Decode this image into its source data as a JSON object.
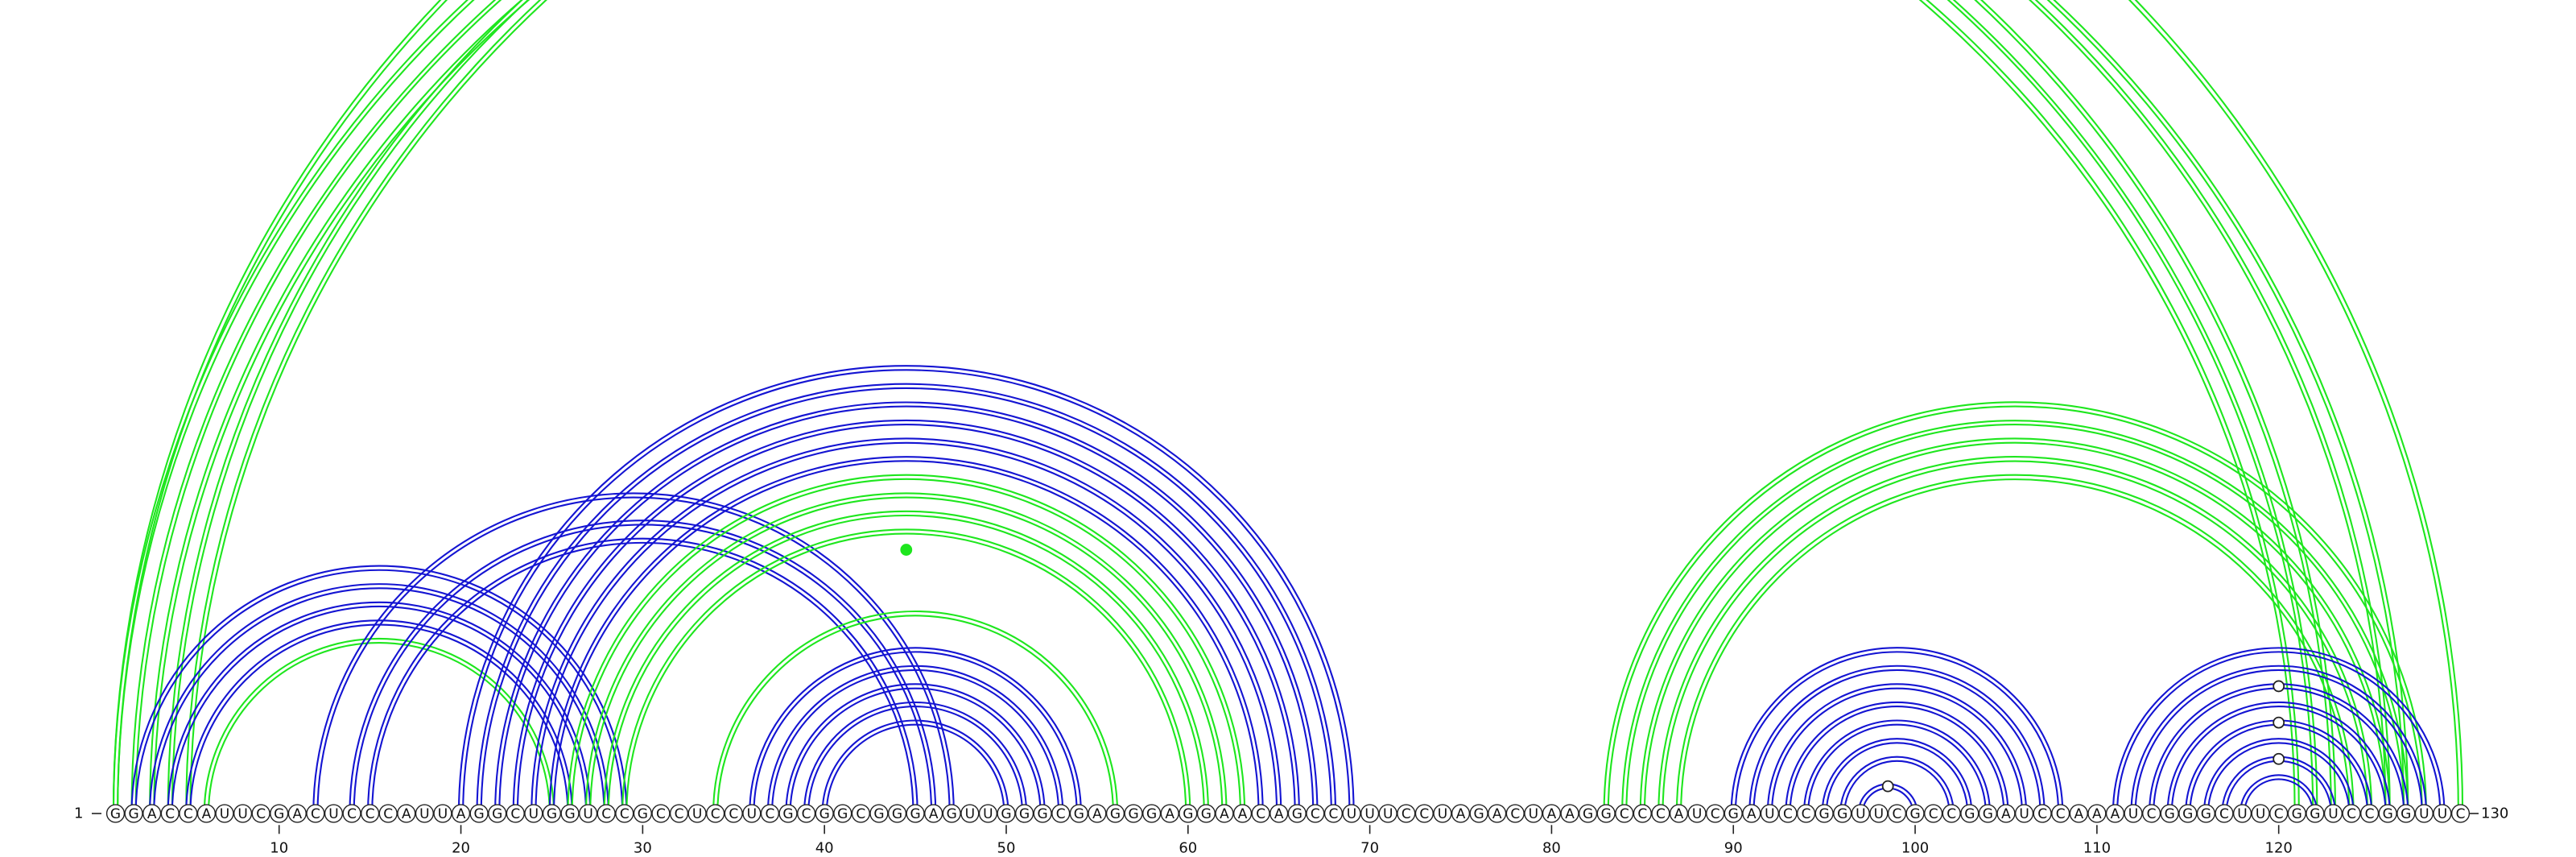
{
  "diagram": {
    "type": "rna_arc_diagram",
    "sequence": "GGACCAUUCGACUCCCAUUAGGCUGGUCCGCCUCCUCGCGGCGGGAGUUGGGCGAGGGAGGAACAGCCUUUCCUAGACUAAGGCCCAUCGAUCCGGUUCGCCGGAUCCAAAUCGGGCUUCGGUCCGGUUC",
    "start_label": "1",
    "end_label": "130",
    "tick_positions": [
      10,
      20,
      30,
      40,
      50,
      60,
      70,
      80,
      90,
      100,
      110,
      120
    ],
    "tick_labels": [
      "10",
      "20",
      "30",
      "40",
      "50",
      "60",
      "70",
      "80",
      "90",
      "100",
      "110",
      "120"
    ],
    "colors": {
      "green": "#1ee61e",
      "blue": "#1414d2",
      "dot_outline": "#222222"
    },
    "arcs": [
      {
        "i": 1,
        "j": 123,
        "color": "green",
        "lines": 2
      },
      {
        "i": 2,
        "j": 122,
        "color": "green",
        "lines": 2
      },
      {
        "i": 3,
        "j": 121,
        "color": "green",
        "lines": 2
      },
      {
        "i": 4,
        "j": 126,
        "color": "green",
        "lines": 2
      },
      {
        "i": 5,
        "j": 127,
        "color": "green",
        "lines": 2
      },
      {
        "i": 1,
        "j": 130,
        "color": "green",
        "lines": 2
      },
      {
        "i": 2,
        "j": 29,
        "color": "blue",
        "lines": 2
      },
      {
        "i": 3,
        "j": 28,
        "color": "blue",
        "lines": 2
      },
      {
        "i": 4,
        "j": 27,
        "color": "blue",
        "lines": 2
      },
      {
        "i": 5,
        "j": 26,
        "color": "blue",
        "lines": 2
      },
      {
        "i": 6,
        "j": 25,
        "color": "green",
        "lines": 2
      },
      {
        "i": 12,
        "j": 47,
        "color": "blue",
        "lines": 2
      },
      {
        "i": 14,
        "j": 46,
        "color": "blue",
        "lines": 2
      },
      {
        "i": 15,
        "j": 45,
        "color": "blue",
        "lines": 2
      },
      {
        "i": 20,
        "j": 69,
        "color": "blue",
        "lines": 2
      },
      {
        "i": 21,
        "j": 68,
        "color": "blue",
        "lines": 2
      },
      {
        "i": 22,
        "j": 67,
        "color": "blue",
        "lines": 2
      },
      {
        "i": 23,
        "j": 66,
        "color": "blue",
        "lines": 2
      },
      {
        "i": 24,
        "j": 65,
        "color": "blue",
        "lines": 2
      },
      {
        "i": 25,
        "j": 64,
        "color": "blue",
        "lines": 2
      },
      {
        "i": 26,
        "j": 63,
        "color": "green",
        "lines": 2
      },
      {
        "i": 27,
        "j": 62,
        "color": "green",
        "lines": 2
      },
      {
        "i": 28,
        "j": 61,
        "color": "green",
        "lines": 2
      },
      {
        "i": 29,
        "j": 60,
        "color": "green",
        "lines": 2
      },
      {
        "i": 34,
        "j": 56,
        "color": "green",
        "lines": 2
      },
      {
        "i": 36,
        "j": 54,
        "color": "blue",
        "lines": 2
      },
      {
        "i": 37,
        "j": 53,
        "color": "blue",
        "lines": 2
      },
      {
        "i": 38,
        "j": 52,
        "color": "blue",
        "lines": 2
      },
      {
        "i": 39,
        "j": 51,
        "color": "blue",
        "lines": 2
      },
      {
        "i": 40,
        "j": 50,
        "color": "blue",
        "lines": 2
      },
      {
        "i": 83,
        "j": 128,
        "color": "green",
        "lines": 2
      },
      {
        "i": 84,
        "j": 127,
        "color": "green",
        "lines": 2
      },
      {
        "i": 85,
        "j": 126,
        "color": "green",
        "lines": 2
      },
      {
        "i": 86,
        "j": 125,
        "color": "green",
        "lines": 2
      },
      {
        "i": 87,
        "j": 124,
        "color": "green",
        "lines": 2
      },
      {
        "i": 90,
        "j": 108,
        "color": "blue",
        "lines": 2
      },
      {
        "i": 91,
        "j": 107,
        "color": "blue",
        "lines": 2
      },
      {
        "i": 92,
        "j": 106,
        "color": "blue",
        "lines": 2
      },
      {
        "i": 93,
        "j": 105,
        "color": "blue",
        "lines": 2
      },
      {
        "i": 94,
        "j": 104,
        "color": "blue",
        "lines": 2
      },
      {
        "i": 95,
        "j": 103,
        "color": "blue",
        "lines": 2
      },
      {
        "i": 96,
        "j": 102,
        "color": "blue",
        "lines": 2
      },
      {
        "i": 97,
        "j": 100,
        "color": "blue",
        "lines": 2
      },
      {
        "i": 111,
        "j": 129,
        "color": "blue",
        "lines": 2
      },
      {
        "i": 112,
        "j": 128,
        "color": "blue",
        "lines": 2
      },
      {
        "i": 113,
        "j": 127,
        "color": "blue",
        "lines": 2
      },
      {
        "i": 114,
        "j": 126,
        "color": "blue",
        "lines": 2
      },
      {
        "i": 115,
        "j": 125,
        "color": "blue",
        "lines": 2
      },
      {
        "i": 116,
        "j": 124,
        "color": "blue",
        "lines": 2
      },
      {
        "i": 117,
        "j": 123,
        "color": "blue",
        "lines": 2
      },
      {
        "i": 118,
        "j": 122,
        "color": "blue",
        "lines": 2
      }
    ],
    "apex_dots": [
      {
        "i": 1,
        "j": 130,
        "color": "green",
        "filled": false
      },
      {
        "i": 30,
        "j": 59,
        "color": "green",
        "filled": true
      },
      {
        "i": 97,
        "j": 100,
        "color": "blue",
        "filled": false
      },
      {
        "i": 113,
        "j": 127,
        "color": "blue",
        "filled": false
      },
      {
        "i": 115,
        "j": 125,
        "color": "blue",
        "filled": false
      },
      {
        "i": 117,
        "j": 123,
        "color": "blue",
        "filled": false
      }
    ]
  }
}
